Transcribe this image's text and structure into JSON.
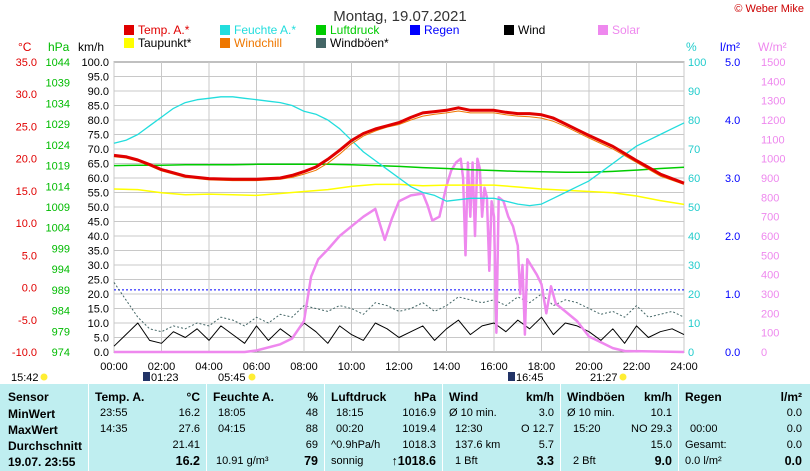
{
  "chart_data": {
    "type": "line",
    "title": "Montag, 19.07.2021",
    "copyright": "© Weber Mike",
    "legend": [
      {
        "name": "Temp. A.*",
        "color": "#e00000"
      },
      {
        "name": "Feuchte A.*",
        "color": "#22dddd"
      },
      {
        "name": "Luftdruck",
        "color": "#00cc00"
      },
      {
        "name": "Regen",
        "color": "#0000ff"
      },
      {
        "name": "Wind",
        "color": "#000000"
      },
      {
        "name": "Solar",
        "color": "#ee88ee"
      },
      {
        "name": "Taupunkt*",
        "color": "#ffff00"
      },
      {
        "name": "Windchill",
        "color": "#ee7700"
      },
      {
        "name": "Windböen*",
        "color": "#446666"
      }
    ],
    "axes": {
      "temp": {
        "unit": "°C",
        "ticks": [
          "35.0",
          "30.0",
          "25.0",
          "20.0",
          "15.0",
          "10.0",
          "5.0",
          "0.0",
          "-5.0",
          "-10.0"
        ],
        "range": [
          -10,
          35
        ],
        "color": "#e00000"
      },
      "pressure": {
        "unit": "hPa",
        "ticks": [
          "1044",
          "1039",
          "1034",
          "1029",
          "1024",
          "1019",
          "1014",
          "1009",
          "1004",
          "999",
          "994",
          "989",
          "984",
          "979",
          "974"
        ],
        "range": [
          974,
          1044
        ],
        "color": "#00bb00"
      },
      "wind": {
        "unit": "km/h",
        "ticks": [
          "100.0",
          "95.0",
          "90.0",
          "85.0",
          "80.0",
          "75.0",
          "70.0",
          "65.0",
          "60.0",
          "55.0",
          "50.0",
          "45.0",
          "40.0",
          "35.0",
          "30.0",
          "25.0",
          "20.0",
          "15.0",
          "10.0",
          "5.0",
          "0.0"
        ],
        "range": [
          0,
          100
        ],
        "color": "#000000"
      },
      "humidity": {
        "unit": "%",
        "ticks": [
          "100",
          "90",
          "80",
          "70",
          "60",
          "50",
          "40",
          "30",
          "20",
          "10",
          "0"
        ],
        "range": [
          0,
          100
        ],
        "color": "#22cccc"
      },
      "rain": {
        "unit": "l/m²",
        "ticks": [
          "5.0",
          "4.0",
          "3.0",
          "2.0",
          "1.0",
          "0.0"
        ],
        "range": [
          0,
          5
        ],
        "color": "#0000ff"
      },
      "solar": {
        "unit": "W/m²",
        "ticks": [
          "1500",
          "1400",
          "1300",
          "1200",
          "1100",
          "1000",
          "900",
          "800",
          "700",
          "600",
          "500",
          "400",
          "300",
          "200",
          "100",
          "0"
        ],
        "range": [
          0,
          1500
        ],
        "color": "#ee88ee"
      },
      "x": {
        "ticks": [
          "00:00",
          "02:00",
          "04:00",
          "06:00",
          "08:00",
          "10:00",
          "12:00",
          "14:00",
          "16:00",
          "18:00",
          "20:00",
          "22:00",
          "24:00"
        ],
        "range": [
          0,
          24
        ]
      }
    },
    "sun_markers": {
      "left": "15:42",
      "rise": "01:23",
      "morning": "05:45",
      "set": "16:45",
      "night": "21:27"
    },
    "series": [
      {
        "name": "Temp. A.*",
        "axis": "temp",
        "color": "#e00000",
        "width": 3,
        "x": [
          0,
          0.5,
          1,
          1.5,
          2,
          3,
          4,
          5,
          6,
          7,
          7.5,
          8,
          8.5,
          9,
          9.5,
          10,
          10.5,
          11,
          11.5,
          12,
          12.5,
          13,
          13.5,
          14,
          14.5,
          15,
          16,
          16.5,
          17,
          17.5,
          18,
          18.5,
          19,
          19.5,
          20,
          21,
          22,
          23,
          24
        ],
        "y": [
          20.5,
          20.3,
          19.8,
          19.1,
          18.3,
          17.3,
          16.9,
          16.8,
          16.8,
          17.0,
          17.4,
          18.0,
          18.7,
          19.9,
          21.3,
          22.8,
          23.9,
          24.6,
          25.1,
          25.6,
          26.4,
          27.1,
          27.3,
          27.5,
          27.9,
          27.5,
          27.5,
          27.2,
          27.0,
          27.0,
          26.8,
          26.3,
          25.4,
          24.5,
          23.6,
          21.9,
          19.7,
          17.6,
          16.2
        ]
      },
      {
        "name": "Feuchte A.*",
        "axis": "humidity",
        "color": "#22dddd",
        "width": 1.3,
        "x": [
          0,
          0.5,
          1,
          1.5,
          2,
          2.5,
          3,
          3.5,
          4,
          4.5,
          5,
          5.5,
          6,
          6.5,
          7,
          7.5,
          8,
          8.5,
          9,
          9.5,
          10,
          10.5,
          11,
          11.5,
          12,
          12.5,
          13,
          13.5,
          14,
          15,
          16,
          17,
          17.5,
          18,
          18.5,
          19,
          19.5,
          20,
          20.5,
          21,
          21.5,
          22,
          22.5,
          23,
          23.5,
          24
        ],
        "y": [
          72,
          73,
          75,
          78,
          81,
          84,
          86,
          87,
          87.5,
          88,
          88,
          87.5,
          87,
          86.5,
          86,
          85,
          83,
          82,
          80,
          77,
          73,
          69,
          66,
          63,
          60,
          57,
          55,
          54,
          52,
          53,
          53,
          51,
          50.5,
          51,
          53,
          55,
          57,
          59,
          62,
          65,
          68,
          71,
          73,
          75,
          77,
          79
        ]
      },
      {
        "name": "Luftdruck",
        "axis": "pressure",
        "color": "#00cc00",
        "width": 1.5,
        "x": [
          0,
          1,
          2,
          3,
          4,
          5,
          6,
          7,
          8,
          9,
          10,
          11,
          12,
          13,
          14,
          15,
          16,
          17,
          18,
          19,
          20,
          21,
          22,
          23,
          24
        ],
        "y": [
          1019.0,
          1019.1,
          1019.1,
          1019.2,
          1019.2,
          1019.2,
          1019.3,
          1019.3,
          1019.3,
          1019.3,
          1019.2,
          1019.0,
          1018.8,
          1018.5,
          1018.3,
          1018.0,
          1017.8,
          1017.6,
          1017.5,
          1017.4,
          1017.4,
          1017.6,
          1017.9,
          1018.3,
          1018.6
        ]
      },
      {
        "name": "Taupunkt*",
        "axis": "temp",
        "color": "#ffff00",
        "width": 1.5,
        "x": [
          0,
          1,
          2,
          3,
          4,
          5,
          6,
          7,
          8,
          9,
          10,
          11,
          12,
          13,
          14,
          15,
          16,
          17,
          18,
          19,
          20,
          21,
          22,
          23,
          24
        ],
        "y": [
          15.3,
          15.2,
          14.7,
          14.4,
          14.5,
          14.4,
          14.3,
          14.6,
          14.9,
          15.2,
          15.7,
          16.0,
          16.0,
          15.8,
          15.9,
          15.9,
          15.9,
          15.6,
          15.3,
          15.1,
          14.9,
          14.7,
          14.2,
          13.5,
          12.9
        ]
      },
      {
        "name": "Windchill",
        "axis": "temp",
        "color": "#ee7700",
        "width": 1,
        "x": [
          0,
          0.5,
          1,
          1.5,
          2,
          3,
          4,
          5,
          6,
          7,
          7.5,
          8,
          8.5,
          9,
          9.5,
          10,
          10.5,
          11,
          11.5,
          12,
          12.5,
          13,
          13.5,
          14,
          14.5,
          15,
          16,
          16.5,
          17,
          17.5,
          18,
          18.5,
          19,
          19.5,
          20,
          21,
          22,
          23,
          24
        ],
        "y": [
          20.3,
          20.1,
          19.6,
          18.9,
          18.1,
          17.1,
          16.7,
          16.6,
          16.6,
          16.8,
          17.1,
          17.6,
          18.2,
          19.3,
          20.7,
          22.3,
          23.5,
          24.3,
          24.9,
          25.3,
          26.0,
          26.6,
          26.9,
          27.1,
          27.4,
          27.1,
          27.1,
          26.8,
          26.6,
          26.5,
          26.3,
          25.8,
          25.0,
          24.1,
          23.2,
          21.5,
          19.4,
          17.3,
          16.0
        ]
      },
      {
        "name": "Solar",
        "axis": "solar",
        "color": "#ee88ee",
        "width": 2.5,
        "x": [
          0,
          5.5,
          6,
          7,
          7.5,
          8,
          8.3,
          8.6,
          9,
          9.5,
          10,
          10.5,
          11,
          11.2,
          11.4,
          11.7,
          12,
          12.5,
          13,
          13.2,
          13.4,
          13.7,
          14,
          14.2,
          14.4,
          14.6,
          14.7,
          14.8,
          14.9,
          15.0,
          15.1,
          15.2,
          15.3,
          15.4,
          15.5,
          15.6,
          15.7,
          15.8,
          15.9,
          16.0,
          16.1,
          16.2,
          16.4,
          16.6,
          16.8,
          17.0,
          17.1,
          17.2,
          17.3,
          17.4,
          17.6,
          17.8,
          18.0,
          18.2,
          18.4,
          18.6,
          19.0,
          19.5,
          20.0,
          20.5,
          21.0,
          21.5,
          24
        ],
        "y": [
          0,
          0,
          8,
          40,
          70,
          160,
          390,
          480,
          530,
          600,
          650,
          700,
          740,
          660,
          580,
          690,
          780,
          810,
          820,
          760,
          680,
          700,
          860,
          940,
          980,
          1000,
          900,
          500,
          980,
          700,
          980,
          600,
          1000,
          950,
          700,
          850,
          800,
          420,
          780,
          700,
          100,
          800,
          780,
          700,
          650,
          550,
          300,
          450,
          90,
          480,
          440,
          400,
          350,
          200,
          340,
          250,
          210,
          160,
          80,
          50,
          20,
          5,
          0
        ]
      },
      {
        "name": "Wind",
        "axis": "wind",
        "color": "#000000",
        "width": 1,
        "x": [
          0,
          0.5,
          1,
          1.5,
          2,
          2.5,
          3,
          3.5,
          4,
          4.5,
          5,
          5.5,
          6,
          6.5,
          7,
          7.5,
          8,
          8.5,
          9,
          9.5,
          10,
          10.5,
          11,
          11.5,
          12,
          12.5,
          13,
          13.5,
          14,
          14.5,
          15,
          15.5,
          16,
          16.5,
          17,
          17.5,
          18,
          18.5,
          19,
          19.5,
          20,
          20.5,
          21,
          21.5,
          22,
          22.5,
          23,
          23.5,
          24
        ],
        "y": [
          2,
          6,
          10,
          4,
          3,
          7,
          5,
          8,
          4,
          9,
          6,
          3,
          9,
          4,
          8,
          5,
          10,
          7,
          3,
          9,
          6,
          4,
          10,
          8,
          5,
          7,
          9,
          4,
          8,
          11,
          6,
          9,
          10,
          7,
          11,
          8,
          12,
          6,
          10,
          9,
          7,
          4,
          8,
          3,
          9,
          5,
          7,
          8,
          6
        ]
      },
      {
        "name": "Windböen*",
        "axis": "wind",
        "color": "#446666",
        "width": 1,
        "dashed": true,
        "x": [
          0,
          0.5,
          1,
          1.5,
          2,
          2.5,
          3,
          3.5,
          4,
          4.5,
          5,
          5.5,
          6,
          6.5,
          7,
          7.5,
          8,
          8.5,
          9,
          9.5,
          10,
          10.5,
          11,
          11.5,
          12,
          12.5,
          13,
          13.5,
          14,
          14.5,
          15,
          15.5,
          16,
          16.5,
          17,
          17.5,
          18,
          18.5,
          19,
          19.5,
          20,
          20.5,
          21,
          21.5,
          22,
          22.5,
          23,
          23.5,
          24
        ],
        "y": [
          24,
          18,
          12,
          8,
          7,
          9,
          8,
          10,
          9,
          12,
          11,
          9,
          12,
          10,
          13,
          12,
          16,
          15,
          14,
          16,
          15,
          13,
          17,
          16,
          14,
          15,
          17,
          14,
          16,
          19,
          18,
          17,
          18,
          16,
          19,
          17,
          20,
          16,
          18,
          17,
          15,
          13,
          14,
          12,
          16,
          12,
          13,
          14,
          12
        ]
      },
      {
        "name": "Regen",
        "axis": "rain",
        "color": "#0000ff",
        "width": 1,
        "dashed": true,
        "x": [
          0,
          24
        ],
        "y": [
          1.07,
          1.07
        ]
      }
    ]
  },
  "table": {
    "headers": {
      "sensor": "Sensor",
      "temp": "Temp. A.",
      "temp_unit": "°C",
      "feuchte": "Feuchte A.",
      "feuchte_unit": "%",
      "luft": "Luftdruck",
      "luft_unit": "hPa",
      "wind": "Wind",
      "wind_unit": "km/h",
      "boeen": "Windböen",
      "boeen_unit": "km/h",
      "regen": "Regen",
      "regen_unit": "l/m²"
    },
    "rows": {
      "min": {
        "label": "MinWert",
        "temp_t": "23:55",
        "temp_v": "16.2",
        "f_t": "18:05",
        "f_v": "48",
        "l_t": "18:15",
        "l_v": "1016.9",
        "w_l": "Ø 10 min.",
        "w_v": "3.0",
        "b_l": "Ø 10 min.",
        "b_v": "10.1",
        "r_l": "",
        "r_v": "0.0"
      },
      "max": {
        "label": "MaxWert",
        "temp_t": "14:35",
        "temp_v": "27.6",
        "f_t": "04:15",
        "f_v": "88",
        "l_t": "00:20",
        "l_v": "1019.4",
        "w_l": "12:30",
        "w_m": "O 12.7",
        "b_l": "15:20",
        "b_m": "NO 29.3",
        "r_l": "00:00",
        "r_v": "0.0"
      },
      "avg": {
        "label": "Durchschnitt",
        "temp_v": "21.41",
        "f_v": "69",
        "l_t": "^0.9hPa/h",
        "l_v": "1018.3",
        "w_l": "137.6 km",
        "w_v": "5.7",
        "b_v": "15.0",
        "r_l": "Gesamt:",
        "r_v": "0.0"
      },
      "cur": {
        "label": "19.07. 23:55",
        "temp_v": "16.2",
        "f_t": "10.91 g/m³",
        "f_v": "79",
        "l_t": "sonnig",
        "l_v": "↑1018.6",
        "w_l": "1 Bft",
        "w_v": "3.3",
        "b_l": "2 Bft",
        "b_v": "9.0",
        "r_l": "0.0 l/m²",
        "r_v": "0.0"
      }
    }
  }
}
